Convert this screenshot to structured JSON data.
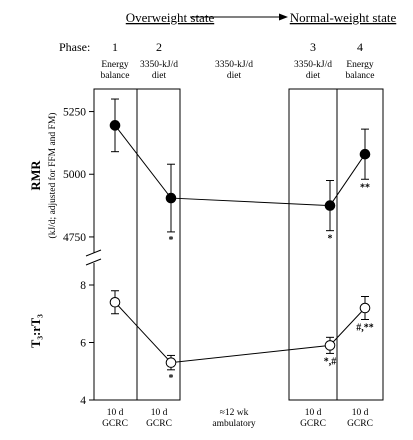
{
  "chart_data": {
    "type": "line",
    "states": {
      "overweight": "Overweight state",
      "normal": "Normal-weight state"
    },
    "phase_row_label": "Phase:",
    "phases": [
      {
        "number": "1",
        "label_lines": [
          "Energy",
          "balance"
        ],
        "stay_lines": [
          "10 d",
          "GCRC"
        ]
      },
      {
        "number": "2",
        "label_lines": [
          "3350-kJ/d",
          "diet"
        ],
        "stay_lines": [
          "10 d",
          "GCRC"
        ]
      },
      {
        "number": "",
        "label_lines": [
          "3350-kJ/d",
          "diet"
        ],
        "stay_lines": [
          "≈12 wk",
          "ambulatory"
        ]
      },
      {
        "number": "3",
        "label_lines": [
          "3350-kJ/d",
          "diet"
        ],
        "stay_lines": [
          "10 d",
          "GCRC"
        ]
      },
      {
        "number": "4",
        "label_lines": [
          "Energy",
          "balance"
        ],
        "stay_lines": [
          "10 d",
          "GCRC"
        ]
      }
    ],
    "panels": [
      {
        "ylabel": "RMR",
        "ylabel_sub": "(kJ/d; adjusted for FFM and FM)",
        "yticks": [
          "4750",
          "5000",
          "5250"
        ],
        "ylim": [
          4650,
          5340
        ],
        "marker": "filled",
        "series": [
          {
            "x": 1,
            "y": 5195,
            "err": 105,
            "annotation": ""
          },
          {
            "x": 2,
            "y": 4905,
            "err": 135,
            "annotation": "*"
          },
          {
            "x": 3,
            "y": 4875,
            "err": 100,
            "annotation": "*"
          },
          {
            "x": 4,
            "y": 5080,
            "err": 100,
            "annotation": "**"
          }
        ]
      },
      {
        "ylabel": "T₃:rT₃",
        "yticks": [
          "4",
          "6",
          "8"
        ],
        "ylim": [
          4,
          8.8
        ],
        "marker": "open",
        "series": [
          {
            "x": 1,
            "y": 7.4,
            "err": 0.4,
            "annotation": ""
          },
          {
            "x": 2,
            "y": 5.3,
            "err": 0.25,
            "annotation": "*"
          },
          {
            "x": 3,
            "y": 5.9,
            "err": 0.28,
            "annotation": "*,#"
          },
          {
            "x": 4,
            "y": 7.2,
            "err": 0.4,
            "annotation": "#,**"
          }
        ]
      }
    ]
  }
}
